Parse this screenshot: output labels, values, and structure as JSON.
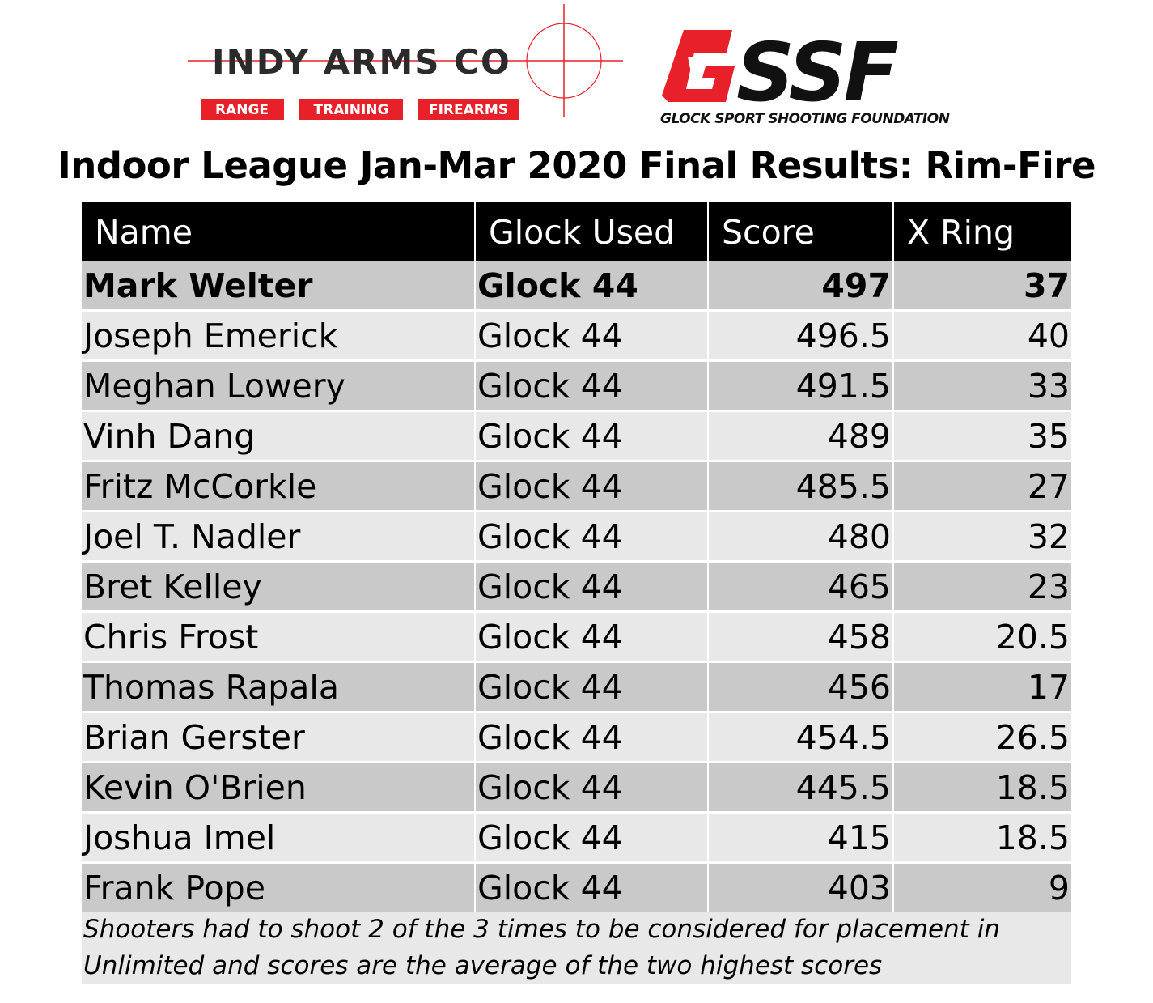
{
  "logos": {
    "indy": {
      "name": "Indy Arms Co",
      "tags": [
        "RANGE",
        "TRAINING",
        "FIREARMS"
      ],
      "accent": "#e8202a"
    },
    "gssf": {
      "name": "GSSF",
      "tagline": "GLOCK SPORT SHOOTING FOUNDATION",
      "accent": "#e8202a"
    }
  },
  "title": "Indoor League Jan-Mar 2020 Final Results: Rim-Fire",
  "table": {
    "headers": [
      "Name",
      "Glock Used",
      "Score",
      "X Ring"
    ],
    "rows": [
      {
        "name": "Mark Welter",
        "glock": "Glock 44",
        "score": "497",
        "x": "37"
      },
      {
        "name": "Joseph Emerick",
        "glock": "Glock 44",
        "score": "496.5",
        "x": "40"
      },
      {
        "name": "Meghan Lowery",
        "glock": "Glock 44",
        "score": "491.5",
        "x": "33"
      },
      {
        "name": "Vinh Dang",
        "glock": "Glock 44",
        "score": "489",
        "x": "35"
      },
      {
        "name": "Fritz McCorkle",
        "glock": "Glock 44",
        "score": "485.5",
        "x": "27"
      },
      {
        "name": "Joel T. Nadler",
        "glock": "Glock 44",
        "score": "480",
        "x": "32"
      },
      {
        "name": "Bret Kelley",
        "glock": "Glock 44",
        "score": "465",
        "x": "23"
      },
      {
        "name": "Chris Frost",
        "glock": "Glock 44",
        "score": "458",
        "x": "20.5"
      },
      {
        "name": "Thomas Rapala",
        "glock": "Glock 44",
        "score": "456",
        "x": "17"
      },
      {
        "name": "Brian Gerster",
        "glock": "Glock 44",
        "score": "454.5",
        "x": "26.5"
      },
      {
        "name": "Kevin O'Brien",
        "glock": "Glock 44",
        "score": "445.5",
        "x": "18.5"
      },
      {
        "name": "Joshua Imel",
        "glock": "Glock 44",
        "score": "415",
        "x": "18.5"
      },
      {
        "name": "Frank Pope",
        "glock": "Glock 44",
        "score": "403",
        "x": "9"
      }
    ]
  },
  "note": [
    "Shooters had to shoot 2 of the 3 times to be considered for placement in",
    "Unlimited and scores are the average of the two highest scores"
  ],
  "colors": {
    "header_bg": "#000000",
    "row_dark": "#c9c9c9",
    "row_light": "#e8e8e8"
  }
}
